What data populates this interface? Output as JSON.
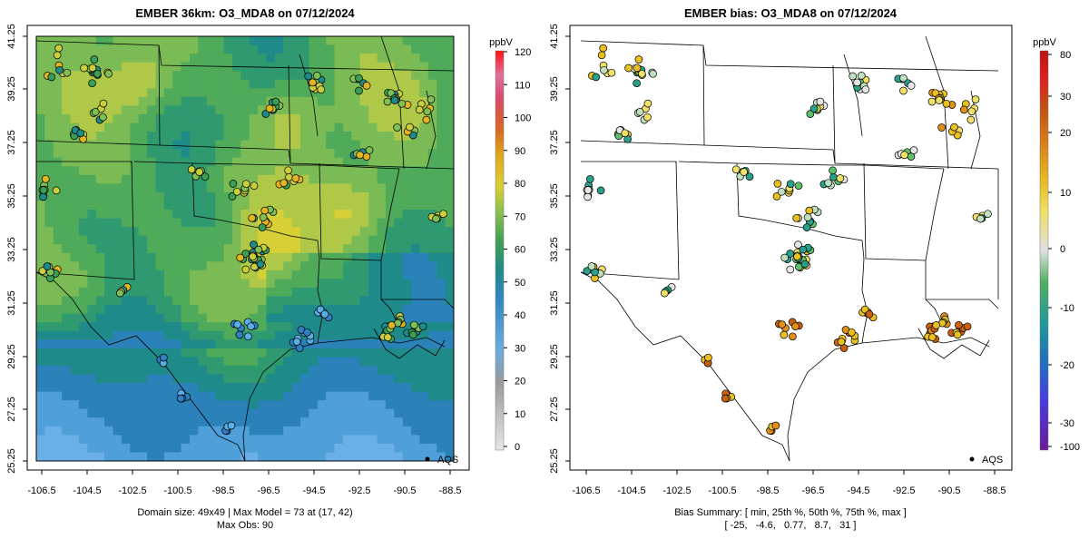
{
  "left_panel": {
    "title": "EMBER 36km: O3_MDA8 on 07/12/2024",
    "footer_line1": "Domain size: 49x49 | Max Model = 73 at (17, 42)",
    "footer_line2": "Max Obs: 90",
    "colorbar_unit": "ppbV",
    "colorbar_ticks": [
      "0",
      "10",
      "20",
      "30",
      "40",
      "50",
      "60",
      "70",
      "80",
      "90",
      "100",
      "110",
      "120"
    ],
    "legend_label": "AQS"
  },
  "right_panel": {
    "title": "EMBER bias: O3_MDA8 on 07/12/2024",
    "footer_line1": "Bias Summary: [ min, 25th %, 50th %, 75th %, max ]",
    "footer_line2": "[ -25,   -4.6,   0.77,   8.7,   31 ]",
    "colorbar_unit": "ppbV",
    "colorbar_ticks": [
      "80",
      "30",
      "20",
      "10",
      "0",
      "-10",
      "-20",
      "-30",
      "-100"
    ],
    "legend_label": "AQS"
  },
  "axes": {
    "x_ticks": [
      "-106.5",
      "-104.5",
      "-102.5",
      "-100.5",
      "-98.5",
      "-96.5",
      "-94.5",
      "-92.5",
      "-90.5",
      "-88.5"
    ],
    "y_ticks": [
      "41.25",
      "39.25",
      "37.25",
      "35.25",
      "33.25",
      "31.25",
      "29.25",
      "27.25",
      "25.25"
    ],
    "lon_range": [
      -107.1,
      -88.0
    ],
    "lat_range": [
      25.25,
      41.5
    ]
  },
  "colors": {
    "ozone_scale": [
      "#d9d9d9",
      "#bdbdbd",
      "#9aa4b3",
      "#5aaee6",
      "#2f7fc4",
      "#1f8a8a",
      "#3a9e55",
      "#7fbf55",
      "#c9cf3c",
      "#e3b420",
      "#e07b18",
      "#d83a3a",
      "#e0568a",
      "#ff1a1a"
    ],
    "bias_scale": [
      "#6a1a9a",
      "#3a3adf",
      "#1f6fc0",
      "#2aa08a",
      "#5fbf6a",
      "#bfe0bf",
      "#e5e5e5",
      "#f0e06a",
      "#e8c020",
      "#e09018",
      "#c86010",
      "#e02020",
      "#c81010"
    ]
  }
}
